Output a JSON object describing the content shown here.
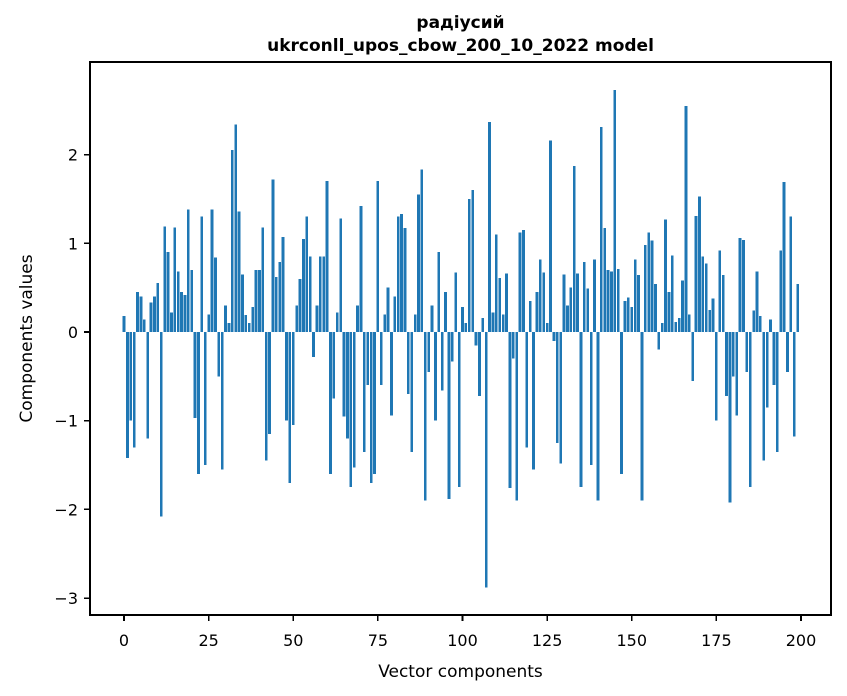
{
  "chart_data": {
    "type": "bar",
    "title": "радіусий",
    "subtitle": "ukrconll_upos_cbow_200_10_2022 model",
    "xlabel": "Vector components",
    "ylabel": "Components values",
    "bar_color": "#1f77b4",
    "background_color": "#ffffff",
    "x_tick_labels": [
      "0",
      "25",
      "50",
      "75",
      "100",
      "125",
      "150",
      "175",
      "200"
    ],
    "x_tick_values": [
      0,
      25,
      50,
      75,
      100,
      125,
      150,
      175,
      200
    ],
    "y_tick_labels": [
      "2",
      "1",
      "0",
      "−1",
      "−2",
      "−3"
    ],
    "y_tick_values": [
      2,
      1,
      0,
      -1,
      -2,
      -3
    ],
    "xlim": [
      -10,
      209
    ],
    "ylim": [
      -3.19,
      3.04
    ],
    "grid": false,
    "legend": "none",
    "values": [
      0.18,
      -1.42,
      -1.0,
      -1.3,
      0.45,
      0.4,
      0.14,
      -1.2,
      0.33,
      0.4,
      0.55,
      -2.08,
      1.19,
      0.9,
      0.22,
      1.18,
      0.68,
      0.45,
      0.42,
      1.38,
      0.7,
      -0.97,
      -1.6,
      1.3,
      -1.5,
      0.2,
      1.38,
      0.84,
      -0.5,
      -1.55,
      0.3,
      0.1,
      2.05,
      2.34,
      1.36,
      0.65,
      0.19,
      0.1,
      0.28,
      0.7,
      0.7,
      1.18,
      -1.45,
      -1.15,
      1.72,
      0.62,
      0.79,
      1.07,
      -1.0,
      -1.7,
      -1.05,
      0.3,
      0.6,
      1.05,
      1.3,
      0.85,
      -0.28,
      0.3,
      0.85,
      0.85,
      1.7,
      -1.6,
      -0.75,
      0.22,
      1.28,
      -0.95,
      -1.2,
      -1.75,
      -1.53,
      0.3,
      1.42,
      -1.35,
      -0.6,
      -1.7,
      -1.6,
      1.7,
      -0.6,
      0.2,
      0.5,
      -0.94,
      0.4,
      1.3,
      1.33,
      1.17,
      -0.7,
      -1.35,
      0.2,
      1.55,
      1.83,
      -1.9,
      -0.45,
      0.3,
      -1.0,
      0.9,
      -0.66,
      0.45,
      -1.88,
      -0.33,
      0.67,
      -1.75,
      0.28,
      0.1,
      1.5,
      1.6,
      -0.15,
      -0.72,
      0.16,
      -2.88,
      2.37,
      0.22,
      1.1,
      0.61,
      0.2,
      0.66,
      -1.76,
      -0.3,
      -1.9,
      1.12,
      1.15,
      -1.3,
      0.35,
      -1.55,
      0.45,
      0.82,
      0.67,
      0.1,
      2.16,
      -0.1,
      -1.25,
      -1.48,
      0.65,
      0.3,
      0.5,
      1.87,
      0.66,
      -1.75,
      0.79,
      0.49,
      -1.5,
      0.82,
      -1.9,
      2.31,
      1.17,
      0.7,
      0.68,
      2.73,
      0.71,
      -1.6,
      0.35,
      0.39,
      0.28,
      0.82,
      0.64,
      -1.9,
      0.98,
      1.12,
      1.03,
      0.54,
      -0.2,
      0.1,
      1.27,
      0.45,
      0.86,
      0.11,
      0.16,
      0.58,
      2.55,
      0.2,
      -0.55,
      1.31,
      1.53,
      0.85,
      0.77,
      0.25,
      0.38,
      -1.0,
      0.92,
      0.64,
      -0.72,
      -1.92,
      -0.5,
      -0.94,
      1.06,
      1.04,
      -0.45,
      -1.75,
      0.24,
      0.68,
      0.18,
      -1.45,
      -0.85,
      0.14,
      -0.6,
      -1.35,
      0.92,
      1.69,
      -0.45,
      1.3,
      -1.18,
      0.54
    ]
  }
}
